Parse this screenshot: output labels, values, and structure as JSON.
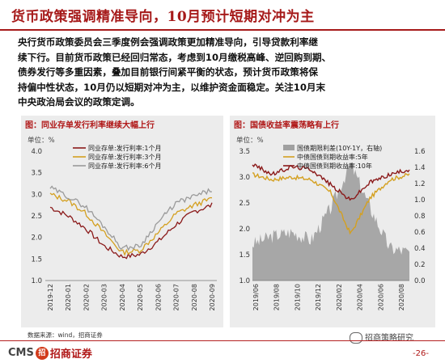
{
  "title": "货币政策强调精准导向，10月预计短期对冲为主",
  "paragraph_lines": [
    "央行货币政策委员会三季度例会强调政策更加精准导向，引导贷款利率继",
    "续下行。目前货币政策已经回归常态，考虑到10月缴税高峰、逆回购到期、",
    "债券发行等多重因素，叠加目前银行间紧平衡的状态，预计货币政策将保",
    "持偏中性状态，10月仍以短期对冲为主，以维护资金面稳定。关注10月末",
    "中央政治局会议的政策定调。"
  ],
  "chart_left": {
    "title": "图：同业存单发行利率继续大幅上行",
    "unit": "单位：%",
    "legend": [
      "同业存单:发行利率:1个月",
      "同业存单:发行利率:3个月",
      "同业存单:发行利率:6个月"
    ],
    "x_ticks": [
      "2019-12",
      "2020-01",
      "2020-02",
      "2020-03",
      "2020-04",
      "2020-05",
      "2020-06",
      "2020-07",
      "2020-08",
      "2020-09"
    ],
    "y_ticks": [
      "1.0",
      "1.5",
      "2.0",
      "2.5",
      "3.0",
      "3.5",
      "4.0"
    ],
    "colors": [
      "#8b1a1a",
      "#d4a020",
      "#9a9a9a"
    ]
  },
  "chart_right": {
    "title": "图：国债收益率震荡略有上行",
    "unit": "单位：%",
    "legend": [
      "国债期限利差(10Y-1Y，右轴)",
      "中债国债到期收益率:5年",
      "中债国债到期收益率:10年"
    ],
    "x_ticks": [
      "2019/06",
      "2019/08",
      "2019/10",
      "2019/12",
      "2020/02",
      "2020/04",
      "2020/06",
      "2020/08"
    ],
    "y_left_ticks": [
      "1.0",
      "1.5",
      "2.0",
      "2.5",
      "3.0",
      "3.5"
    ],
    "y_right_ticks": [
      "0.0",
      "0.2",
      "0.4",
      "0.6",
      "0.8",
      "1.0",
      "1.2",
      "1.4",
      "1.6"
    ],
    "colors": [
      "#a0a0a0",
      "#d4a020",
      "#8b1a1a"
    ]
  },
  "chart_data": [
    {
      "type": "line",
      "title": "图：同业存单发行利率继续大幅上行",
      "ylabel": "单位：%",
      "ylim": [
        1.0,
        4.0
      ],
      "x": [
        "2019-12",
        "2020-01",
        "2020-02",
        "2020-03",
        "2020-04",
        "2020-05",
        "2020-06",
        "2020-07",
        "2020-08",
        "2020-09"
      ],
      "series": [
        {
          "name": "同业存单:发行利率:1个月",
          "values": [
            2.7,
            2.5,
            2.2,
            1.8,
            1.55,
            1.6,
            1.9,
            2.3,
            2.6,
            2.75
          ]
        },
        {
          "name": "同业存单:发行利率:3个月",
          "values": [
            3.0,
            2.85,
            2.55,
            2.1,
            1.65,
            1.7,
            2.1,
            2.55,
            2.75,
            2.9
          ]
        },
        {
          "name": "同业存单:发行利率:6个月",
          "values": [
            3.15,
            2.95,
            2.7,
            2.25,
            1.75,
            1.8,
            2.35,
            2.8,
            2.95,
            3.1
          ]
        }
      ]
    },
    {
      "type": "line",
      "title": "图：国债收益率震荡略有上行",
      "ylabel": "单位：%",
      "ylim": [
        1.0,
        3.5
      ],
      "y2lim": [
        0.0,
        1.6
      ],
      "x": [
        "2019/06",
        "2019/08",
        "2019/10",
        "2019/12",
        "2020/02",
        "2020/04",
        "2020/06",
        "2020/08",
        "2020/09"
      ],
      "series": [
        {
          "name": "国债期限利差(10Y-1Y，右轴)",
          "axis": "right",
          "values": [
            0.45,
            0.55,
            0.6,
            0.5,
            0.9,
            1.45,
            0.9,
            0.4,
            0.35
          ]
        },
        {
          "name": "中债国债到期收益率:5年",
          "values": [
            3.05,
            2.95,
            3.0,
            2.95,
            2.7,
            1.9,
            2.6,
            2.95,
            3.05
          ]
        },
        {
          "name": "中债国债到期收益率:10年",
          "values": [
            3.25,
            3.05,
            3.2,
            3.15,
            2.85,
            2.55,
            2.9,
            3.05,
            3.15
          ]
        }
      ]
    }
  ],
  "footer": {
    "source": "数据来源：wind，招商证券",
    "cms": "CMS",
    "cms_badge": "招",
    "cms_cn": "招商证券",
    "brand": "招商策略研究",
    "page": "-26-"
  }
}
